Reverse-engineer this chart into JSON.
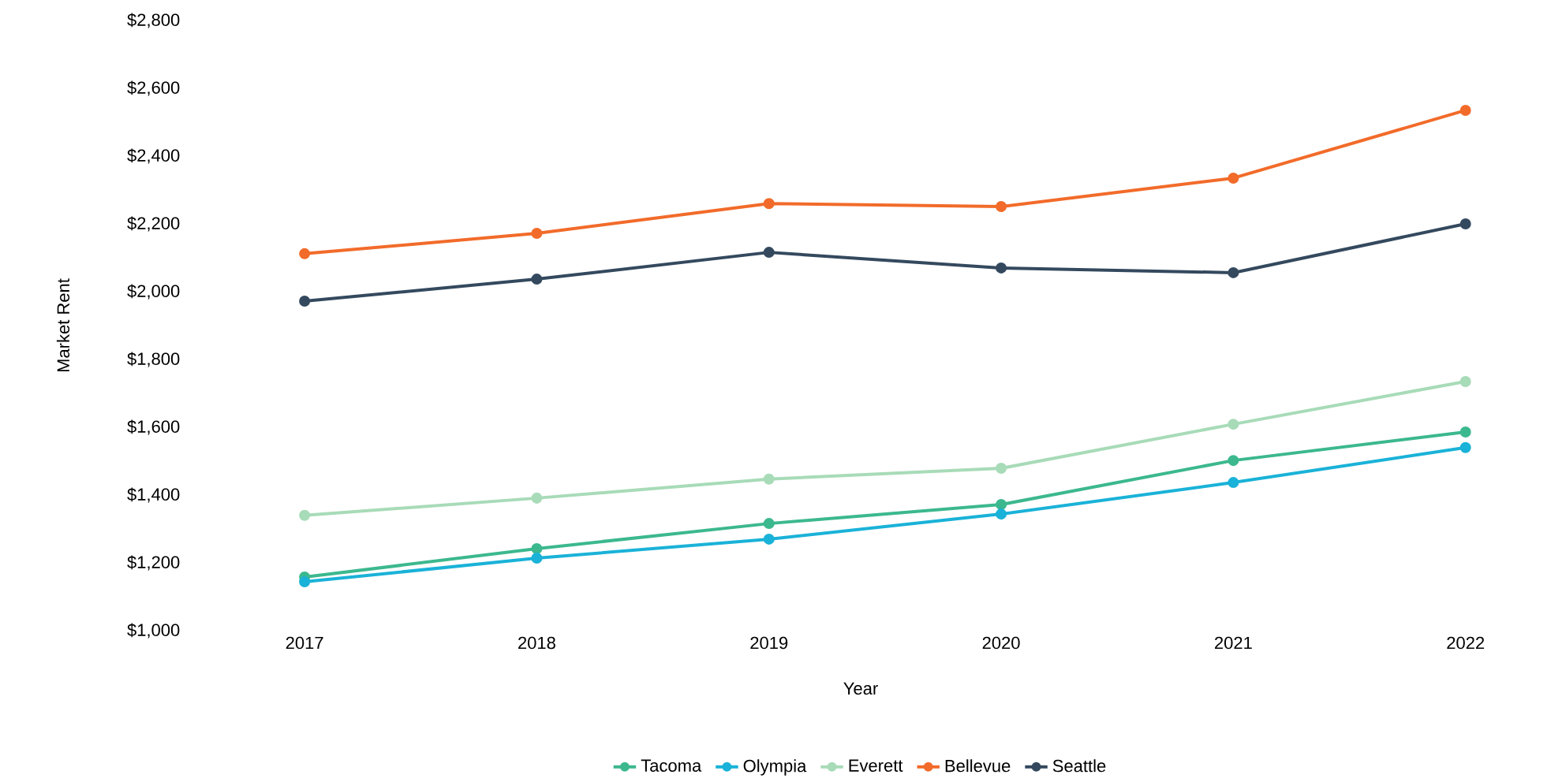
{
  "chart_data": {
    "type": "line",
    "xlabel": "Year",
    "ylabel": "Market Rent",
    "categories": [
      "2017",
      "2018",
      "2019",
      "2020",
      "2021",
      "2022"
    ],
    "series": [
      {
        "name": "Tacoma",
        "color": "#3cb88e",
        "values": [
          1158,
          1242,
          1316,
          1372,
          1502,
          1586
        ]
      },
      {
        "name": "Olympia",
        "color": "#1ab2d8",
        "values": [
          1144,
          1214,
          1270,
          1344,
          1437,
          1540
        ]
      },
      {
        "name": "Everett",
        "color": "#a8dbb8",
        "values": [
          1340,
          1391,
          1447,
          1479,
          1609,
          1735
        ]
      },
      {
        "name": "Bellevue",
        "color": "#f26b2a",
        "values": [
          2112,
          2172,
          2260,
          2251,
          2335,
          2535
        ]
      },
      {
        "name": "Seattle",
        "color": "#34495e",
        "values": [
          1972,
          2037,
          2116,
          2070,
          2056,
          2200
        ]
      }
    ],
    "ylim": [
      1000,
      2800
    ],
    "yticks": [
      {
        "value": 1000,
        "label": "$1,000"
      },
      {
        "value": 1200,
        "label": "$1,200"
      },
      {
        "value": 1400,
        "label": "$1,400"
      },
      {
        "value": 1600,
        "label": "$1,600"
      },
      {
        "value": 1800,
        "label": "$1,800"
      },
      {
        "value": 2000,
        "label": "$2,000"
      },
      {
        "value": 2200,
        "label": "$2,200"
      },
      {
        "value": 2400,
        "label": "$2,400"
      },
      {
        "value": 2600,
        "label": "$2,600"
      },
      {
        "value": 2800,
        "label": "$2,800"
      }
    ],
    "legend": "bottom",
    "marker": "circle",
    "line_style": "solid"
  }
}
